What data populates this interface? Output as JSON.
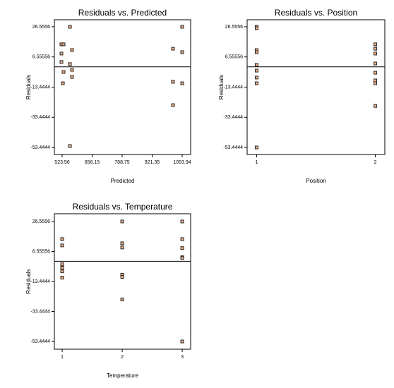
{
  "chart_data": [
    {
      "type": "scatter",
      "title": "Residuals vs. Predicted",
      "x_label": "Predicted",
      "y_label": "Residuals",
      "x": [
        520.4,
        529.8,
        520.4,
        520.4,
        529.8,
        526.7,
        557.9,
        567.2,
        557.9,
        567.2,
        567.2,
        557.9,
        1013.4,
        1054,
        1054,
        1013.4,
        1054,
        1013.4
      ],
      "values": [
        14.9,
        14.9,
        8.8,
        3.2,
        -3.4,
        -10.9,
        26.5556,
        11.1,
        1.8,
        -2.0,
        -6.7,
        -52.5,
        12.0,
        26.5556,
        9.7,
        -9.9,
        -10.9,
        -25.4
      ],
      "color": "#f4b183",
      "hline": 0,
      "xlim": [
        489.2,
        1091.4
      ],
      "xticks": [
        523.56,
        656.15,
        788.75,
        921.35,
        1053.94
      ],
      "ylim": [
        -58.1,
        31.2
      ],
      "yticks": [
        26.5556,
        6.55556,
        -13.4444,
        -33.4444,
        -53.4444
      ]
    },
    {
      "type": "scatter",
      "title": "Residuals vs. Position",
      "x_label": "Position",
      "y_label": "Residuals",
      "x": [
        1,
        1,
        1,
        1,
        1,
        1,
        1,
        1,
        1,
        2,
        2,
        2,
        2,
        2,
        2,
        2,
        2
      ],
      "values": [
        26.5556,
        25.6,
        11.1,
        9.7,
        1.3,
        -2.5,
        -7.1,
        -10.9,
        -53.4444,
        14.9,
        12.0,
        8.8,
        2.2,
        -3.9,
        -9.0,
        -10.9,
        -25.9
      ],
      "color": "#f4b183",
      "hline": 0,
      "xlim": [
        0.92,
        2.08
      ],
      "xticks": [
        1,
        2
      ],
      "ylim": [
        -58.1,
        31.2
      ],
      "yticks": [
        26.5556,
        6.55556,
        -13.4444,
        -33.4444,
        -53.4444
      ]
    },
    {
      "type": "scatter",
      "title": "Residuals vs. Temperature",
      "x_label": "Temperature",
      "y_label": "Residuals",
      "x": [
        1,
        1,
        1,
        1,
        1,
        1,
        2,
        2,
        2,
        2,
        2,
        2,
        3,
        3,
        3,
        3,
        3,
        3
      ],
      "values": [
        14.8,
        10.6,
        -2.0,
        -4.3,
        -6.7,
        -10.9,
        26.5556,
        12.0,
        9.2,
        -9.0,
        -10.4,
        -25.4,
        26.5556,
        14.8,
        8.8,
        2.7,
        2.2,
        -53.4444
      ],
      "color": "#f4b183",
      "hline": 0,
      "xlim": [
        0.87,
        3.14
      ],
      "xticks": [
        1,
        2,
        3
      ],
      "ylim": [
        -58.6,
        31.7
      ],
      "yticks": [
        26.5556,
        6.55556,
        -13.4444,
        -33.4444,
        -53.4444
      ]
    }
  ]
}
